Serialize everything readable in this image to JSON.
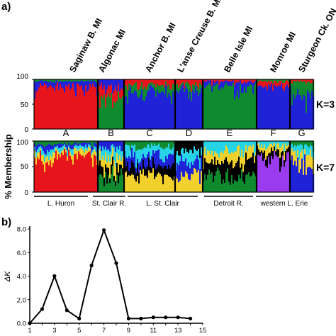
{
  "panel_a": {
    "label": "a)",
    "ylabel": "% Membership",
    "yticks": [
      "100",
      "50",
      "0"
    ],
    "k_rows": [
      "K=3",
      "K=7"
    ],
    "sites": [
      {
        "name": "Saginaw B. MI",
        "group": "A"
      },
      {
        "name": "Algonac MI",
        "group": "B"
      },
      {
        "name": "Anchor B. MI",
        "group": "C"
      },
      {
        "name": "L'anse Creuse B. MI",
        "group": "D"
      },
      {
        "name": "Belle Isle MI",
        "group": "E"
      },
      {
        "name": "Monroe MI",
        "group": "F"
      },
      {
        "name": "Sturgeon Ck. ON",
        "group": "G"
      }
    ],
    "regions": [
      "L. Huron",
      "St. Clair R.",
      "L. St. Clair",
      "Detroit R.",
      "western L. Erie"
    ],
    "colors": {
      "red": "#e8141b",
      "blue": "#1f22d6",
      "green": "#0f8a2e",
      "yellow": "#f2d12c",
      "cyan": "#27d3e6",
      "purple": "#9b3bf0",
      "black": "#000000"
    }
  },
  "chart_data": {
    "type": "line",
    "label": "b)",
    "ylabel": "ΔK",
    "x": [
      1,
      2,
      3,
      4,
      5,
      6,
      7,
      8,
      9,
      10,
      11,
      12,
      13,
      14
    ],
    "values": [
      0.0,
      1.2,
      4.0,
      1.1,
      0.4,
      4.9,
      7.9,
      5.1,
      0.4,
      0.4,
      0.5,
      0.5,
      0.5,
      0.4
    ],
    "xlim": [
      1,
      15
    ],
    "ylim": [
      0,
      8.0
    ],
    "xticks": [
      "1",
      "3",
      "5",
      "7",
      "9",
      "11",
      "13",
      "15"
    ],
    "xticks_minor": [
      "2",
      "4",
      "6",
      "8",
      "10",
      "12",
      "14"
    ],
    "yticks": [
      "0.0",
      "2.0",
      "4.0",
      "6.0",
      "8.0"
    ]
  }
}
